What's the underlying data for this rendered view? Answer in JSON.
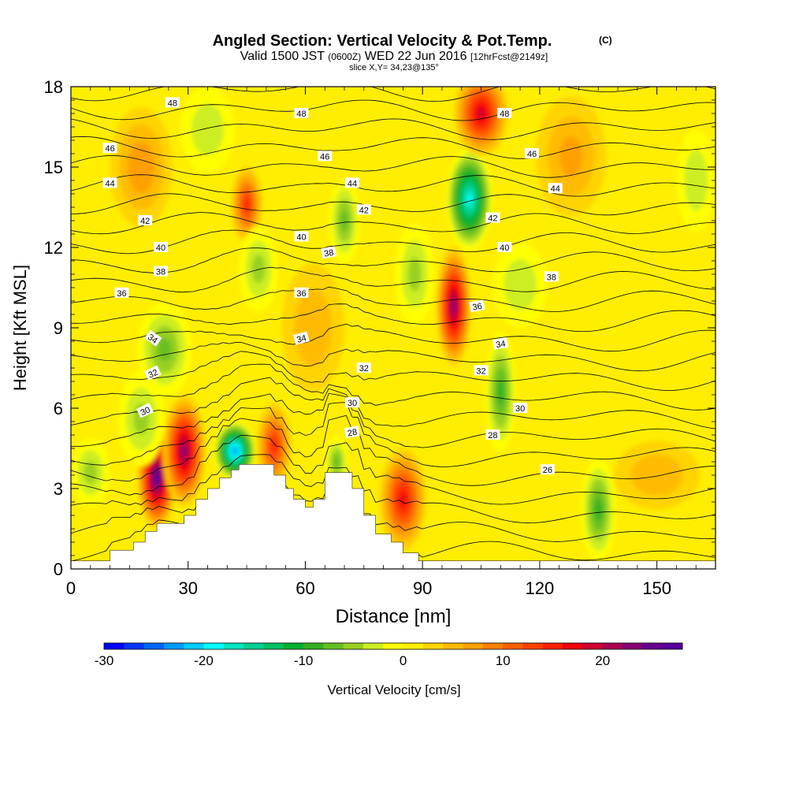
{
  "chart_data": {
    "type": "heatmap",
    "title": "Angled Section: Vertical Velocity & Pot.Temp.",
    "title_tag": "(C)",
    "subtitle_main": "Valid 1500 JST ",
    "subtitle_utc": "(0600Z)",
    "subtitle_date": " WED 22 Jun 2016 ",
    "subtitle_fcst": "[12hrFcst@2149z]",
    "slice_label": "slice X,Y= 34,23@135°",
    "xlabel": "Distance [nm]",
    "ylabel": "Height [Kft MSL]",
    "xlim": [
      0,
      165
    ],
    "ylim": [
      0,
      18
    ],
    "x_ticks": [
      "0",
      "30",
      "60",
      "90",
      "120",
      "150"
    ],
    "y_ticks": [
      "0",
      "3",
      "6",
      "9",
      "12",
      "15",
      "18"
    ],
    "colorbar": {
      "label": "Vertical Velocity [cm/s]",
      "ticks": [
        "-30",
        "-20",
        "-10",
        "0",
        "10",
        "20"
      ],
      "range": [
        -30,
        28
      ],
      "step": 2,
      "colors": [
        "#0000ff",
        "#0033ff",
        "#0066ff",
        "#0099ff",
        "#00ccff",
        "#00ffff",
        "#00e5c0",
        "#00d090",
        "#00c060",
        "#00b030",
        "#33b020",
        "#66c020",
        "#99d020",
        "#ccee20",
        "#ffff00",
        "#ffee00",
        "#ffd400",
        "#ffbb00",
        "#ffa000",
        "#ff8000",
        "#ff6000",
        "#ff4000",
        "#ff2000",
        "#ee0010",
        "#cc0030",
        "#aa0050",
        "#880070",
        "#660090",
        "#550099"
      ]
    },
    "vertical_velocity_features": [
      {
        "x": 22,
        "y": 3.4,
        "w": 10,
        "h": 1.2,
        "peak": 26
      },
      {
        "x": 29,
        "y": 4.4,
        "w": 11,
        "h": 1.3,
        "peak": 22
      },
      {
        "x": 42,
        "y": 4.4,
        "w": 11,
        "h": 0.7,
        "peak": -24
      },
      {
        "x": 52,
        "y": 4.6,
        "w": 9,
        "h": 1.0,
        "peak": 14
      },
      {
        "x": 85,
        "y": 2.6,
        "w": 12,
        "h": 1.2,
        "peak": 16
      },
      {
        "x": 98,
        "y": 9.8,
        "w": 9,
        "h": 1.4,
        "peak": 22
      },
      {
        "x": 102,
        "y": 13.8,
        "w": 12,
        "h": 1.2,
        "peak": -20
      },
      {
        "x": 105,
        "y": 17.0,
        "w": 14,
        "h": 1.0,
        "peak": 18
      },
      {
        "x": 45,
        "y": 13.6,
        "w": 8,
        "h": 0.9,
        "peak": 14
      },
      {
        "x": 110,
        "y": 6.6,
        "w": 8,
        "h": 1.4,
        "peak": -10
      },
      {
        "x": 135,
        "y": 2.2,
        "w": 9,
        "h": 1.2,
        "peak": -10
      },
      {
        "x": 70,
        "y": 13.0,
        "w": 8,
        "h": 1.0,
        "peak": -8
      },
      {
        "x": 24,
        "y": 8.2,
        "w": 14,
        "h": 1.1,
        "peak": -8
      },
      {
        "x": 18,
        "y": 5.6,
        "w": 12,
        "h": 1.1,
        "peak": -6
      },
      {
        "x": 48,
        "y": 11.2,
        "w": 10,
        "h": 1.0,
        "peak": -6
      },
      {
        "x": 88,
        "y": 11.0,
        "w": 10,
        "h": 1.2,
        "peak": -6
      },
      {
        "x": 115,
        "y": 10.6,
        "w": 14,
        "h": 1.0,
        "peak": -5
      },
      {
        "x": 35,
        "y": 16.4,
        "w": 14,
        "h": 1.0,
        "peak": -5
      },
      {
        "x": 18,
        "y": 15.0,
        "w": 16,
        "h": 1.4,
        "peak": 7
      },
      {
        "x": 128,
        "y": 15.4,
        "w": 18,
        "h": 1.4,
        "peak": 6
      },
      {
        "x": 68,
        "y": 4.0,
        "w": 6,
        "h": 0.6,
        "peak": -8
      },
      {
        "x": 160,
        "y": 14.5,
        "w": 10,
        "h": 1.2,
        "peak": -5
      },
      {
        "x": 150,
        "y": 3.5,
        "w": 22,
        "h": 0.8,
        "peak": 5
      },
      {
        "x": 62,
        "y": 9.0,
        "w": 16,
        "h": 1.5,
        "peak": 5
      },
      {
        "x": 5,
        "y": 3.6,
        "w": 10,
        "h": 0.8,
        "peak": -6
      }
    ],
    "isentropes": [
      24,
      25,
      26,
      27,
      28,
      29,
      30,
      31,
      32,
      33,
      34,
      35,
      36,
      37,
      38,
      39,
      40,
      41,
      42,
      43,
      44,
      45,
      46,
      47,
      48,
      49
    ],
    "contour_labels": [
      {
        "t": "48",
        "x": 26,
        "y": 17.4,
        "r": 0
      },
      {
        "t": "48",
        "x": 59,
        "y": 17.0,
        "r": 0
      },
      {
        "t": "48",
        "x": 111,
        "y": 17.0,
        "r": 0
      },
      {
        "t": "46",
        "x": 10,
        "y": 15.7,
        "r": 0
      },
      {
        "t": "46",
        "x": 65,
        "y": 15.4,
        "r": 0
      },
      {
        "t": "46",
        "x": 118,
        "y": 15.5,
        "r": 0
      },
      {
        "t": "44",
        "x": 10,
        "y": 14.4,
        "r": 0
      },
      {
        "t": "44",
        "x": 72,
        "y": 14.4,
        "r": 0
      },
      {
        "t": "44",
        "x": 124,
        "y": 14.2,
        "r": 0
      },
      {
        "t": "42",
        "x": 19,
        "y": 13.0,
        "r": 0
      },
      {
        "t": "42",
        "x": 75,
        "y": 13.4,
        "r": 0
      },
      {
        "t": "42",
        "x": 108,
        "y": 13.1,
        "r": 0
      },
      {
        "t": "40",
        "x": 23,
        "y": 12.0,
        "r": 0
      },
      {
        "t": "40",
        "x": 59,
        "y": 12.4,
        "r": 0
      },
      {
        "t": "40",
        "x": 111,
        "y": 12.0,
        "r": 0
      },
      {
        "t": "38",
        "x": 66,
        "y": 11.8,
        "r": -10
      },
      {
        "t": "38",
        "x": 23,
        "y": 11.1,
        "r": 0
      },
      {
        "t": "38",
        "x": 123,
        "y": 10.9,
        "r": 0
      },
      {
        "t": "36",
        "x": 13,
        "y": 10.3,
        "r": 0
      },
      {
        "t": "36",
        "x": 59,
        "y": 10.3,
        "r": 0
      },
      {
        "t": "36",
        "x": 104,
        "y": 9.8,
        "r": -10
      },
      {
        "t": "34",
        "x": 21,
        "y": 8.6,
        "r": 35
      },
      {
        "t": "34",
        "x": 59,
        "y": 8.6,
        "r": -15
      },
      {
        "t": "34",
        "x": 110,
        "y": 8.4,
        "r": -10
      },
      {
        "t": "32",
        "x": 21,
        "y": 7.3,
        "r": -25
      },
      {
        "t": "32",
        "x": 75,
        "y": 7.5,
        "r": 0
      },
      {
        "t": "32",
        "x": 105,
        "y": 7.4,
        "r": 0
      },
      {
        "t": "30",
        "x": 19,
        "y": 5.9,
        "r": -25
      },
      {
        "t": "30",
        "x": 72,
        "y": 6.2,
        "r": 0
      },
      {
        "t": "30",
        "x": 115,
        "y": 6.0,
        "r": 0
      },
      {
        "t": "28",
        "x": 72,
        "y": 5.1,
        "r": -10
      },
      {
        "t": "28",
        "x": 108,
        "y": 5.0,
        "r": 0
      },
      {
        "t": "26",
        "x": 122,
        "y": 3.7,
        "r": 0
      }
    ],
    "terrain": [
      [
        0,
        0.3
      ],
      [
        10,
        0.3
      ],
      [
        10,
        0.7
      ],
      [
        16,
        0.7
      ],
      [
        16,
        1.0
      ],
      [
        19,
        1.0
      ],
      [
        19,
        1.4
      ],
      [
        22,
        1.4
      ],
      [
        22,
        1.7
      ],
      [
        29,
        1.7
      ],
      [
        29,
        2.0
      ],
      [
        32,
        2.0
      ],
      [
        32,
        2.6
      ],
      [
        35,
        2.6
      ],
      [
        35,
        3.0
      ],
      [
        38,
        3.0
      ],
      [
        38,
        3.4
      ],
      [
        41,
        3.4
      ],
      [
        41,
        3.7
      ],
      [
        43,
        3.7
      ],
      [
        43,
        3.9
      ],
      [
        52,
        3.9
      ],
      [
        52,
        3.5
      ],
      [
        55,
        3.5
      ],
      [
        55,
        3.0
      ],
      [
        57,
        3.0
      ],
      [
        57,
        2.6
      ],
      [
        60,
        2.6
      ],
      [
        60,
        2.3
      ],
      [
        62,
        2.3
      ],
      [
        62,
        2.6
      ],
      [
        65,
        2.6
      ],
      [
        65,
        3.6
      ],
      [
        72,
        3.6
      ],
      [
        72,
        3.0
      ],
      [
        75,
        3.0
      ],
      [
        75,
        2.0
      ],
      [
        78,
        2.0
      ],
      [
        78,
        1.3
      ],
      [
        82,
        1.3
      ],
      [
        82,
        1.0
      ],
      [
        85,
        1.0
      ],
      [
        85,
        0.6
      ],
      [
        89,
        0.6
      ],
      [
        89,
        0.3
      ],
      [
        165,
        0.3
      ]
    ]
  }
}
